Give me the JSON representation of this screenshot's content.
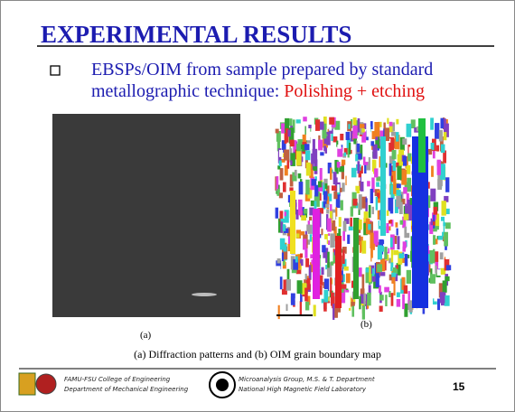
{
  "header": {
    "title": "EXPERIMENTAL RESULTS"
  },
  "bullet": {
    "text": "EBSPs/OIM from sample prepared by standard metallographic technique: ",
    "highlight": "Polishing + etching"
  },
  "figures": {
    "left_label": "(a)",
    "right_label": "(b)",
    "caption": "(a) Diffraction patterns and (b) OIM grain boundary map"
  },
  "footer": {
    "left_line1": "FAMU-FSU College of Engineering",
    "left_line2": "Department of Mechanical Engineering",
    "mid_line1": "Microanalysis Group, M.S. & T. Department",
    "mid_line2": "National High Magnetic Field Laboratory",
    "page": "15"
  }
}
